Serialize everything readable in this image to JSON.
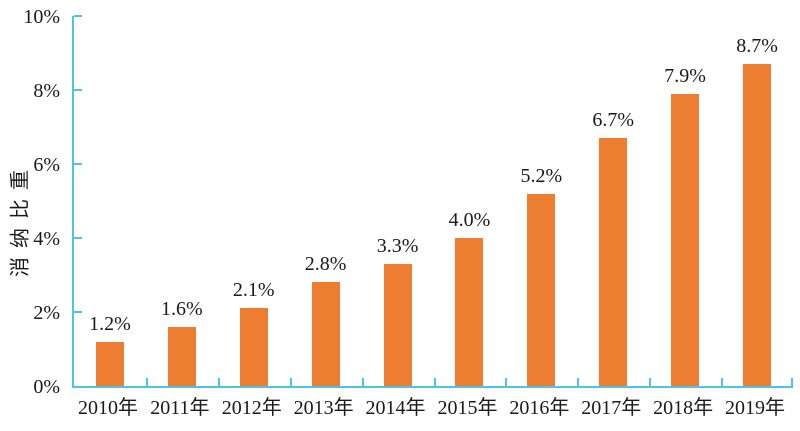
{
  "chart_data": {
    "type": "bar",
    "title": "",
    "xlabel": "",
    "ylabel": "消纳比重",
    "categories": [
      "2010年",
      "2011年",
      "2012年",
      "2013年",
      "2014年",
      "2015年",
      "2016年",
      "2017年",
      "2018年",
      "2019年"
    ],
    "values": [
      1.2,
      1.6,
      2.1,
      2.8,
      3.3,
      4.0,
      5.2,
      6.7,
      7.9,
      8.7
    ],
    "bar_labels": [
      "1.2%",
      "1.6%",
      "2.1%",
      "2.8%",
      "3.3%",
      "4.0%",
      "5.2%",
      "6.7%",
      "7.9%",
      "8.7%"
    ],
    "ylim": [
      0,
      10
    ],
    "y_ticks": [
      {
        "value": 0,
        "label": "0%"
      },
      {
        "value": 2,
        "label": "2%"
      },
      {
        "value": 4,
        "label": "4%"
      },
      {
        "value": 6,
        "label": "6%"
      },
      {
        "value": 8,
        "label": "8%"
      },
      {
        "value": 10,
        "label": "10%"
      }
    ],
    "grid": false,
    "legend": "none",
    "colors": {
      "bar": "#ED7D31",
      "axis": "#4EC3E8",
      "text": "#1a1a1a",
      "background": "#FFFFFF"
    }
  }
}
